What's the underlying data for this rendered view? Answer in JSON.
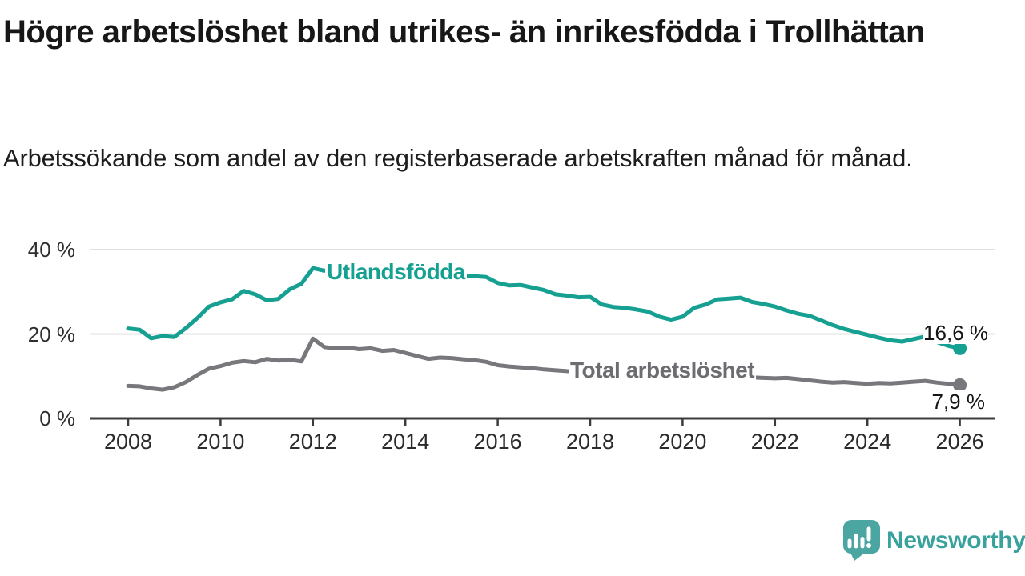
{
  "header": {
    "title": "Högre arbetslöshet bland utrikes- än inrikesfödda i Trollhättan",
    "subtitle": "Arbetssökande som andel av den registerbaserade arbetskraften månad för månad."
  },
  "chart_data": {
    "type": "line",
    "title": "Högre arbetslöshet bland utrikes- än inrikesfödda i Trollhättan",
    "subtitle": "Arbetssökande som andel av den registerbaserade arbetskraften månad för månad.",
    "xlabel": "",
    "ylabel": "",
    "unit": "%",
    "grid": "horizontal",
    "legend_position": "inline-labels",
    "xlim": [
      2007.2,
      2026.8
    ],
    "ylim": [
      0,
      42
    ],
    "x_ticks": [
      2008,
      2010,
      2012,
      2014,
      2016,
      2018,
      2020,
      2022,
      2024,
      2026
    ],
    "y_ticks": [
      {
        "value": 0,
        "label": "0 %"
      },
      {
        "value": 20,
        "label": "20 %"
      },
      {
        "value": 40,
        "label": "40 %"
      }
    ],
    "x": [
      2008.0,
      2008.25,
      2008.5,
      2008.75,
      2009.0,
      2009.25,
      2009.5,
      2009.75,
      2010.0,
      2010.25,
      2010.5,
      2010.75,
      2011.0,
      2011.25,
      2011.5,
      2011.75,
      2012.0,
      2012.25,
      2012.5,
      2012.75,
      2013.0,
      2013.25,
      2013.5,
      2013.75,
      2014.0,
      2014.25,
      2014.5,
      2014.75,
      2015.0,
      2015.25,
      2015.5,
      2015.75,
      2016.0,
      2016.25,
      2016.5,
      2016.75,
      2017.0,
      2017.25,
      2017.5,
      2017.75,
      2018.0,
      2018.25,
      2018.5,
      2018.75,
      2019.0,
      2019.25,
      2019.5,
      2019.75,
      2020.0,
      2020.25,
      2020.5,
      2020.75,
      2021.0,
      2021.25,
      2021.5,
      2021.75,
      2022.0,
      2022.25,
      2022.5,
      2022.75,
      2023.0,
      2023.25,
      2023.5,
      2023.75,
      2024.0,
      2024.25,
      2024.5,
      2024.75,
      2025.0,
      2025.25,
      2025.5,
      2025.75,
      2026.0
    ],
    "series": [
      {
        "name": "Utlandsfödda",
        "color": "#16a091",
        "end_label": "16,6 %",
        "end_value": 16.6,
        "values": [
          21.3,
          21.0,
          19.0,
          19.5,
          19.3,
          21.4,
          23.8,
          26.5,
          27.5,
          28.2,
          30.2,
          29.4,
          28.0,
          28.3,
          30.6,
          31.9,
          35.6,
          35.0,
          35.4,
          35.1,
          34.9,
          35.0,
          34.6,
          34.4,
          34.3,
          34.0,
          33.9,
          34.0,
          33.8,
          33.6,
          33.7,
          33.5,
          32.1,
          31.5,
          31.6,
          31.0,
          30.4,
          29.4,
          29.1,
          28.7,
          28.8,
          27.0,
          26.4,
          26.2,
          25.8,
          25.3,
          24.1,
          23.4,
          24.1,
          26.2,
          27.0,
          28.2,
          28.4,
          28.6,
          27.6,
          27.1,
          26.5,
          25.6,
          24.8,
          24.3,
          23.2,
          22.1,
          21.2,
          20.5,
          19.8,
          19.1,
          18.5,
          18.2,
          18.8,
          19.4,
          18.1,
          17.2,
          16.6
        ]
      },
      {
        "name": "Total arbetslöshet",
        "color": "#77777c",
        "label_color": "#6c6c71",
        "end_label": "7,9 %",
        "end_value": 7.9,
        "values": [
          7.7,
          7.6,
          7.1,
          6.8,
          7.4,
          8.6,
          10.3,
          11.8,
          12.4,
          13.2,
          13.6,
          13.3,
          14.1,
          13.7,
          13.9,
          13.5,
          18.9,
          16.9,
          16.6,
          16.8,
          16.4,
          16.6,
          16.0,
          16.2,
          15.5,
          14.8,
          14.1,
          14.4,
          14.3,
          14.0,
          13.8,
          13.4,
          12.6,
          12.3,
          12.1,
          11.9,
          11.6,
          11.4,
          11.2,
          11.1,
          11.0,
          10.9,
          10.8,
          10.7,
          10.6,
          10.5,
          10.4,
          10.4,
          10.5,
          10.6,
          10.4,
          10.1,
          9.9,
          9.8,
          9.7,
          9.6,
          9.5,
          9.6,
          9.3,
          9.0,
          8.7,
          8.5,
          8.6,
          8.4,
          8.2,
          8.4,
          8.3,
          8.5,
          8.7,
          8.9,
          8.5,
          8.2,
          7.9
        ]
      }
    ],
    "axis_color": "#3c3c3c",
    "gridline_color": "#e0e0e0"
  },
  "footer": {
    "brand": "Newsworthy",
    "brand_color": "#3aa29d",
    "logo_mark_color": "#4ba5a0",
    "logo_icon": "speech-bubble-bar-chart-exclamation"
  }
}
